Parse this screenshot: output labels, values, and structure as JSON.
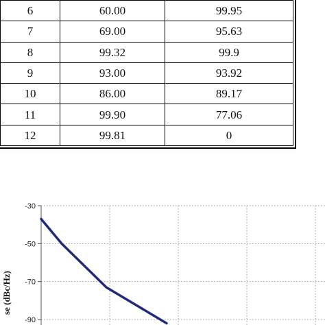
{
  "table": {
    "rows": [
      [
        "6",
        "60.00",
        "99.95"
      ],
      [
        "7",
        "69.00",
        "95.63"
      ],
      [
        "8",
        "99.32",
        "99.9"
      ],
      [
        "9",
        "93.00",
        "93.92"
      ],
      [
        "10",
        "86.00",
        "89.17"
      ],
      [
        "11",
        "99.90",
        "77.06"
      ],
      [
        "12",
        "99.81",
        "0"
      ]
    ]
  },
  "chart_data": {
    "type": "line",
    "ylabel": "se (dBc/Hz)",
    "y_ticks": [
      "-30",
      "-50",
      "-70",
      "-90"
    ],
    "ylim": [
      -30,
      -90
    ],
    "grid": true,
    "series": [
      {
        "color": "#1f2a7a",
        "points": [
          {
            "x": 0.0,
            "y": -37
          },
          {
            "x": 0.3,
            "y": -50
          },
          {
            "x": 0.95,
            "y": -73
          },
          {
            "x": 1.83,
            "y": -92
          }
        ]
      }
    ]
  }
}
